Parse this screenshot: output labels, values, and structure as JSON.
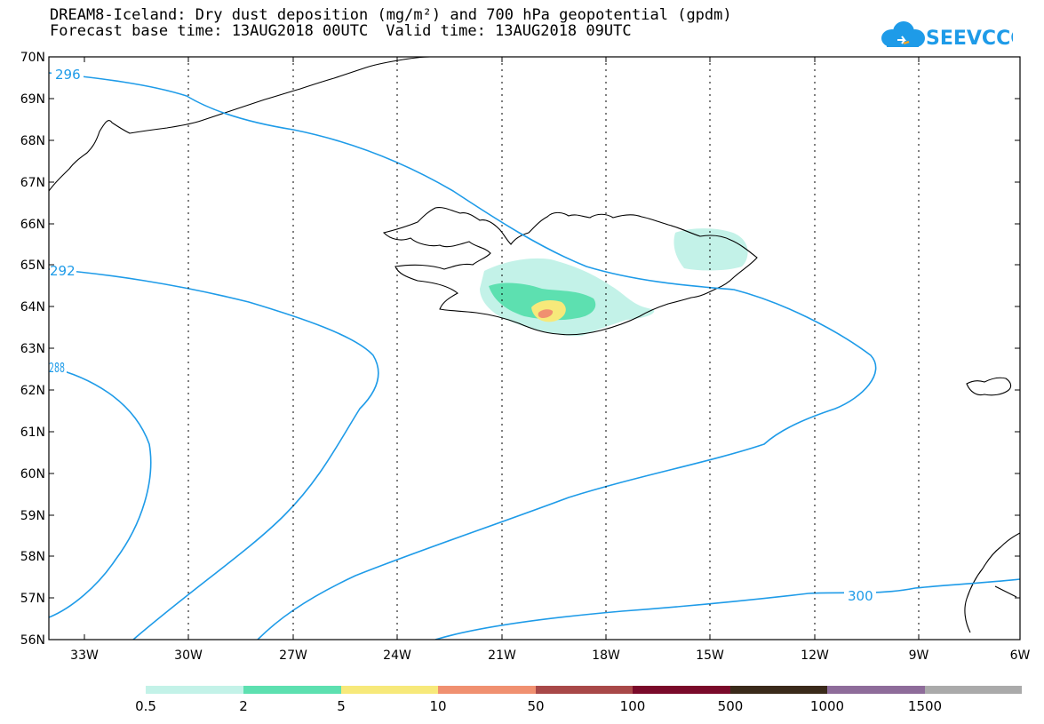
{
  "title": {
    "line1": "DREAM8-Iceland: Dry dust deposition (mg/m²) and 700 hPa geopotential (gpdm)",
    "line2_base": "Forecast base time: 13AUG2018 00UTC",
    "line2_valid": "Valid time: 13AUG2018 09UTC"
  },
  "logo": {
    "text": "SEEVCCC",
    "color": "#1e9be8",
    "accent": "#f5a623"
  },
  "map": {
    "lon_range": [
      -34.5,
      -6
    ],
    "lat_range": [
      56,
      70
    ],
    "lon_ticks": [
      "33W",
      "30W",
      "27W",
      "24W",
      "21W",
      "18W",
      "15W",
      "12W",
      "9W",
      "6W"
    ],
    "lat_ticks": [
      "70N",
      "69N",
      "68N",
      "67N",
      "66N",
      "65N",
      "64N",
      "63N",
      "62N",
      "61N",
      "60N",
      "59N",
      "58N",
      "57N",
      "56N"
    ],
    "contour_color": "#1e9be8",
    "contour_labels": [
      "296",
      "292",
      "288",
      "300"
    ]
  },
  "legend": {
    "colors": [
      "#c3f2e8",
      "#5de0b0",
      "#f7e97a",
      "#f09070",
      "#a84848",
      "#7a0a2a",
      "#3a2a1a",
      "#8e6c9a",
      "#aaaaaa"
    ],
    "labels": [
      "0.5",
      "2",
      "5",
      "10",
      "50",
      "100",
      "500",
      "1000",
      "1500"
    ]
  }
}
